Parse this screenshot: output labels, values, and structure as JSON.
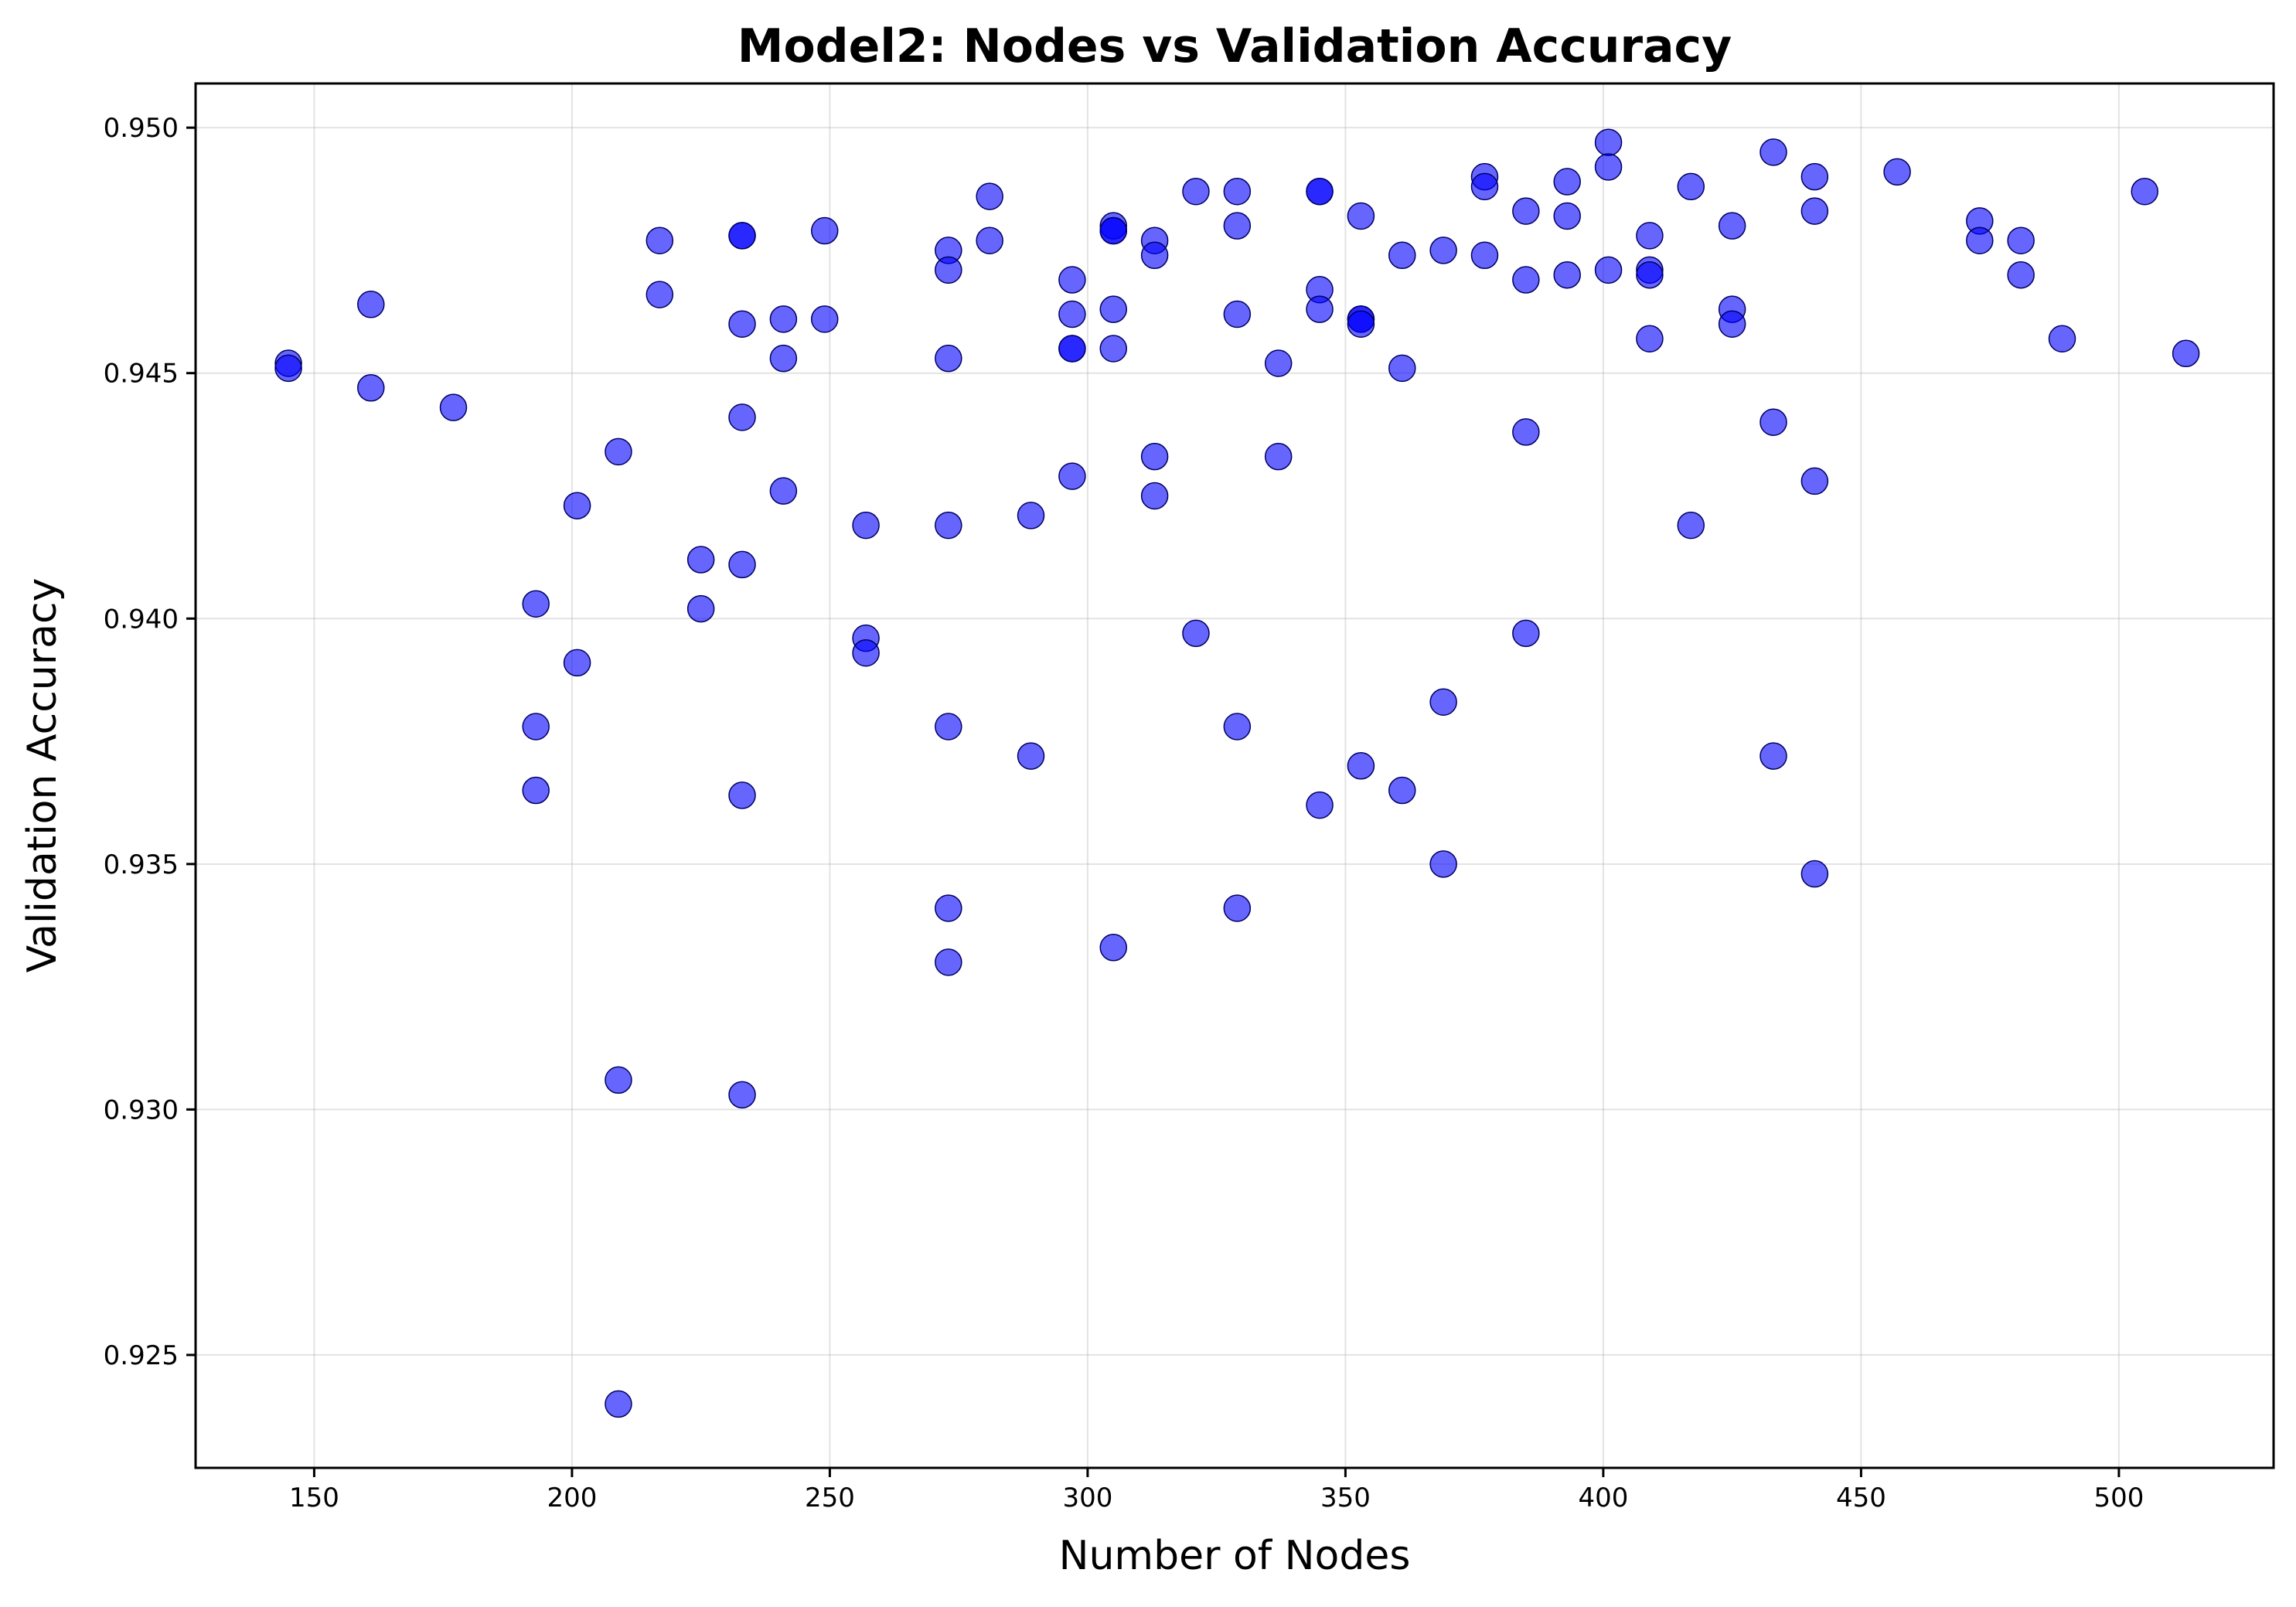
{
  "chart_data": {
    "type": "scatter",
    "title": "Model2: Nodes vs Validation Accuracy",
    "xlabel": "Number of Nodes",
    "ylabel": "Validation Accuracy",
    "xlim": [
      127,
      530
    ],
    "ylim": [
      0.9227,
      0.9509
    ],
    "xticks": [
      150,
      200,
      250,
      300,
      350,
      400,
      450,
      500
    ],
    "xtick_labels": [
      "150",
      "200",
      "250",
      "300",
      "350",
      "400",
      "450",
      "500"
    ],
    "yticks": [
      0.925,
      0.93,
      0.935,
      0.94,
      0.945,
      0.95
    ],
    "ytick_labels": [
      "0.925",
      "0.930",
      "0.935",
      "0.940",
      "0.945",
      "0.950"
    ],
    "grid": true,
    "legend": "none",
    "colors": {
      "point_fill": "#0000ff",
      "point_edge": "#000060"
    },
    "points": [
      [
        145,
        0.9452
      ],
      [
        145,
        0.9451
      ],
      [
        161,
        0.9464
      ],
      [
        161,
        0.9447
      ],
      [
        177,
        0.9443
      ],
      [
        193,
        0.9403
      ],
      [
        193,
        0.9378
      ],
      [
        193,
        0.9365
      ],
      [
        201,
        0.9423
      ],
      [
        201,
        0.9391
      ],
      [
        209,
        0.9434
      ],
      [
        209,
        0.9306
      ],
      [
        209,
        0.924
      ],
      [
        217,
        0.9477
      ],
      [
        217,
        0.9466
      ],
      [
        225,
        0.9412
      ],
      [
        225,
        0.9402
      ],
      [
        233,
        0.9478
      ],
      [
        233,
        0.9478
      ],
      [
        233,
        0.946
      ],
      [
        233,
        0.9441
      ],
      [
        233,
        0.9411
      ],
      [
        233,
        0.9364
      ],
      [
        233,
        0.9303
      ],
      [
        241,
        0.9461
      ],
      [
        241,
        0.9453
      ],
      [
        241,
        0.9426
      ],
      [
        249,
        0.9479
      ],
      [
        249,
        0.9461
      ],
      [
        257,
        0.9419
      ],
      [
        257,
        0.9396
      ],
      [
        257,
        0.9393
      ],
      [
        273,
        0.9475
      ],
      [
        273,
        0.9471
      ],
      [
        273,
        0.9453
      ],
      [
        273,
        0.9419
      ],
      [
        273,
        0.9378
      ],
      [
        273,
        0.9341
      ],
      [
        273,
        0.933
      ],
      [
        281,
        0.9486
      ],
      [
        281,
        0.9477
      ],
      [
        289,
        0.9421
      ],
      [
        289,
        0.9372
      ],
      [
        297,
        0.9469
      ],
      [
        297,
        0.9462
      ],
      [
        297,
        0.9455
      ],
      [
        297,
        0.9455
      ],
      [
        297,
        0.9429
      ],
      [
        305,
        0.948
      ],
      [
        305,
        0.9479
      ],
      [
        305,
        0.9479
      ],
      [
        305,
        0.9463
      ],
      [
        305,
        0.9455
      ],
      [
        305,
        0.9333
      ],
      [
        313,
        0.9477
      ],
      [
        313,
        0.9474
      ],
      [
        313,
        0.9433
      ],
      [
        313,
        0.9425
      ],
      [
        321,
        0.9487
      ],
      [
        321,
        0.9397
      ],
      [
        329,
        0.9487
      ],
      [
        329,
        0.948
      ],
      [
        329,
        0.9462
      ],
      [
        329,
        0.9378
      ],
      [
        329,
        0.9341
      ],
      [
        337,
        0.9452
      ],
      [
        337,
        0.9433
      ],
      [
        345,
        0.9487
      ],
      [
        345,
        0.9487
      ],
      [
        345,
        0.9467
      ],
      [
        345,
        0.9463
      ],
      [
        345,
        0.9362
      ],
      [
        353,
        0.9482
      ],
      [
        353,
        0.9461
      ],
      [
        353,
        0.9461
      ],
      [
        353,
        0.946
      ],
      [
        353,
        0.937
      ],
      [
        361,
        0.9474
      ],
      [
        361,
        0.9451
      ],
      [
        361,
        0.9365
      ],
      [
        369,
        0.9475
      ],
      [
        369,
        0.9383
      ],
      [
        369,
        0.935
      ],
      [
        377,
        0.949
      ],
      [
        377,
        0.9488
      ],
      [
        377,
        0.9474
      ],
      [
        385,
        0.9483
      ],
      [
        385,
        0.9469
      ],
      [
        385,
        0.9438
      ],
      [
        385,
        0.9397
      ],
      [
        393,
        0.9489
      ],
      [
        393,
        0.9482
      ],
      [
        393,
        0.947
      ],
      [
        401,
        0.9497
      ],
      [
        401,
        0.9492
      ],
      [
        401,
        0.9471
      ],
      [
        409,
        0.9478
      ],
      [
        409,
        0.9471
      ],
      [
        409,
        0.947
      ],
      [
        409,
        0.9457
      ],
      [
        417,
        0.9488
      ],
      [
        417,
        0.9419
      ],
      [
        425,
        0.948
      ],
      [
        425,
        0.9463
      ],
      [
        425,
        0.946
      ],
      [
        433,
        0.9495
      ],
      [
        433,
        0.944
      ],
      [
        433,
        0.9372
      ],
      [
        441,
        0.949
      ],
      [
        441,
        0.9483
      ],
      [
        441,
        0.9428
      ],
      [
        441,
        0.9348
      ],
      [
        457,
        0.9491
      ],
      [
        473,
        0.9481
      ],
      [
        473,
        0.9477
      ],
      [
        481,
        0.9477
      ],
      [
        481,
        0.947
      ],
      [
        489,
        0.9457
      ],
      [
        505,
        0.9487
      ],
      [
        513,
        0.9454
      ]
    ]
  }
}
